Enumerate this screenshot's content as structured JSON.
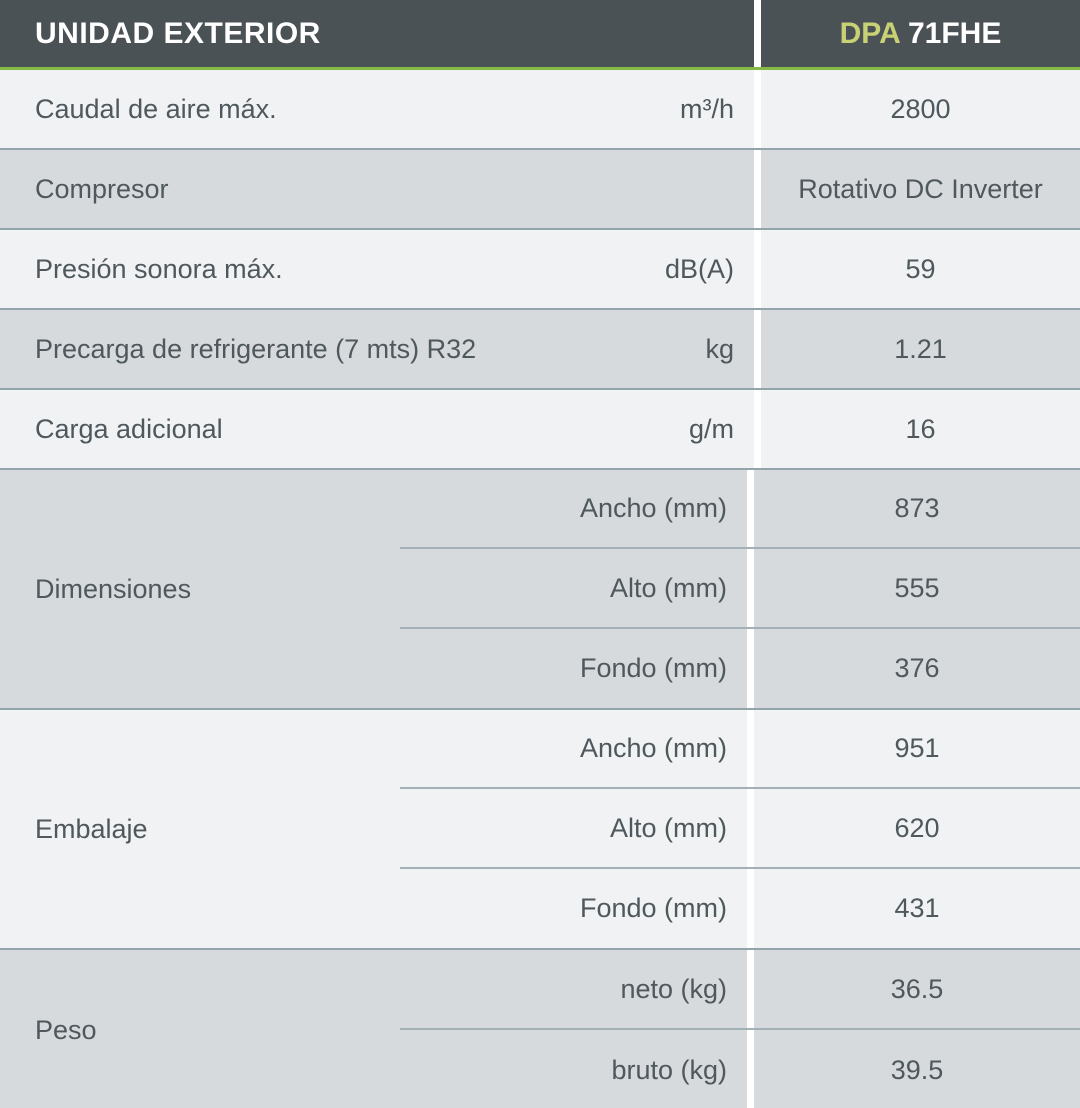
{
  "header": {
    "title": "UNIDAD EXTERIOR",
    "model_prefix": "DPA ",
    "model_suffix": "71FHE"
  },
  "colors": {
    "header_bg": "#4b5256",
    "accent_green": "#85ba44",
    "model_prefix_color": "#c8d274",
    "row_light_bg": "#f0f2f3",
    "row_dark_bg": "#d7dadc",
    "text_color": "#4e585d",
    "row_separator": "#93a4ab",
    "subrow_separator": "#a3b1b6"
  },
  "rows": [
    {
      "label": "Caudal de aire máx.",
      "unit": "m³/h",
      "value": "2800"
    },
    {
      "label": "Compresor",
      "unit": "",
      "value": "Rotativo DC Inverter"
    },
    {
      "label": "Presión sonora máx.",
      "unit": "dB(A)",
      "value": "59"
    },
    {
      "label": "Precarga de refrigerante (7 mts) R32",
      "unit": "kg",
      "value": "1.21"
    },
    {
      "label": "Carga adicional",
      "unit": "g/m",
      "value": "16"
    },
    {
      "label": "Dimensiones",
      "sub_rows": [
        {
          "label": "Ancho (mm)",
          "value": "873"
        },
        {
          "label": "Alto (mm)",
          "value": "555"
        },
        {
          "label": "Fondo (mm)",
          "value": "376"
        }
      ]
    },
    {
      "label": "Embalaje",
      "sub_rows": [
        {
          "label": "Ancho (mm)",
          "value": "951"
        },
        {
          "label": "Alto (mm)",
          "value": "620"
        },
        {
          "label": "Fondo (mm)",
          "value": "431"
        }
      ]
    },
    {
      "label": "Peso",
      "sub_rows": [
        {
          "label": "neto (kg)",
          "value": "36.5"
        },
        {
          "label": "bruto (kg)",
          "value": "39.5"
        }
      ]
    }
  ]
}
